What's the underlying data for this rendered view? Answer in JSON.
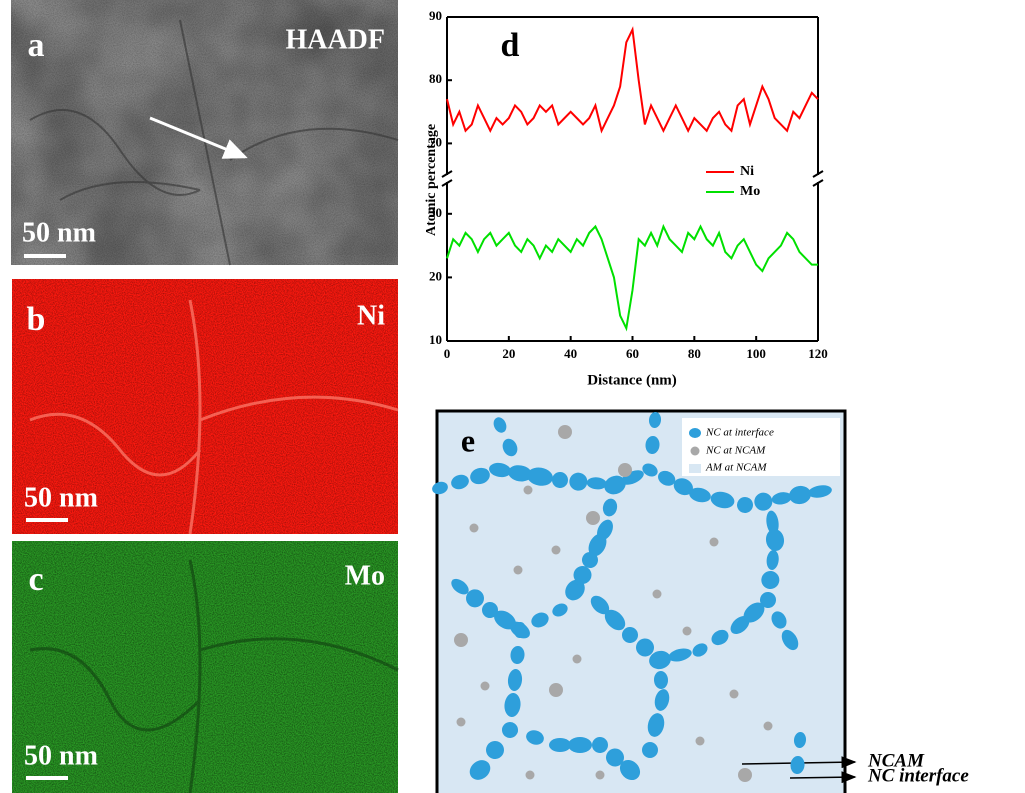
{
  "panels": {
    "a": {
      "label": "a",
      "name": "HAADF",
      "scale": "50 nm"
    },
    "b": {
      "label": "b",
      "name": "Ni",
      "scale": "50 nm"
    },
    "c": {
      "label": "c",
      "name": "Mo",
      "scale": "50 nm"
    }
  },
  "chart_data": {
    "type": "line",
    "label": "d",
    "x_label": "Distance (nm)",
    "y_label": "Atomic percentage",
    "x": [
      0,
      2,
      4,
      6,
      8,
      10,
      12,
      14,
      16,
      18,
      20,
      22,
      24,
      26,
      28,
      30,
      32,
      34,
      36,
      38,
      40,
      42,
      44,
      46,
      48,
      50,
      52,
      54,
      56,
      58,
      60,
      62,
      64,
      66,
      68,
      70,
      72,
      74,
      76,
      78,
      80,
      82,
      84,
      86,
      88,
      90,
      92,
      94,
      96,
      98,
      100,
      102,
      104,
      106,
      108,
      110,
      112,
      114,
      116,
      118,
      120
    ],
    "series": [
      {
        "name": "Ni",
        "color": "#ff0000",
        "values": [
          77,
          73,
          75,
          72,
          73,
          76,
          74,
          72,
          74,
          73,
          74,
          76,
          75,
          73,
          74,
          76,
          75,
          76,
          73,
          74,
          75,
          74,
          73,
          74,
          76,
          72,
          74,
          76,
          79,
          86,
          88,
          80,
          73,
          76,
          74,
          72,
          74,
          76,
          74,
          72,
          74,
          73,
          72,
          74,
          75,
          73,
          72,
          76,
          77,
          73,
          76,
          79,
          77,
          74,
          73,
          72,
          75,
          74,
          76,
          78,
          77
        ]
      },
      {
        "name": "Mo",
        "color": "#00e000",
        "values": [
          23,
          26,
          25,
          27,
          26,
          24,
          26,
          27,
          25,
          26,
          27,
          25,
          24,
          26,
          25,
          23,
          25,
          24,
          26,
          25,
          24,
          26,
          25,
          27,
          28,
          26,
          23,
          20,
          14,
          12,
          18,
          26,
          25,
          27,
          25,
          28,
          26,
          25,
          24,
          27,
          26,
          28,
          26,
          25,
          27,
          24,
          23,
          25,
          26,
          24,
          22,
          21,
          23,
          24,
          25,
          27,
          26,
          24,
          23,
          22,
          22
        ]
      }
    ],
    "xlim": [
      0,
      120
    ],
    "xticks": [
      0,
      20,
      40,
      60,
      80,
      100,
      120
    ],
    "ylim": [
      10,
      90
    ],
    "yticks": [
      10,
      20,
      30,
      70,
      80,
      90
    ],
    "axis_break": [
      35,
      65
    ]
  },
  "schematic": {
    "label": "e",
    "legend": [
      "NC at interface",
      "NC at NCAM",
      "AM at NCAM"
    ],
    "callouts": [
      "NCAM",
      "NC interface"
    ]
  }
}
